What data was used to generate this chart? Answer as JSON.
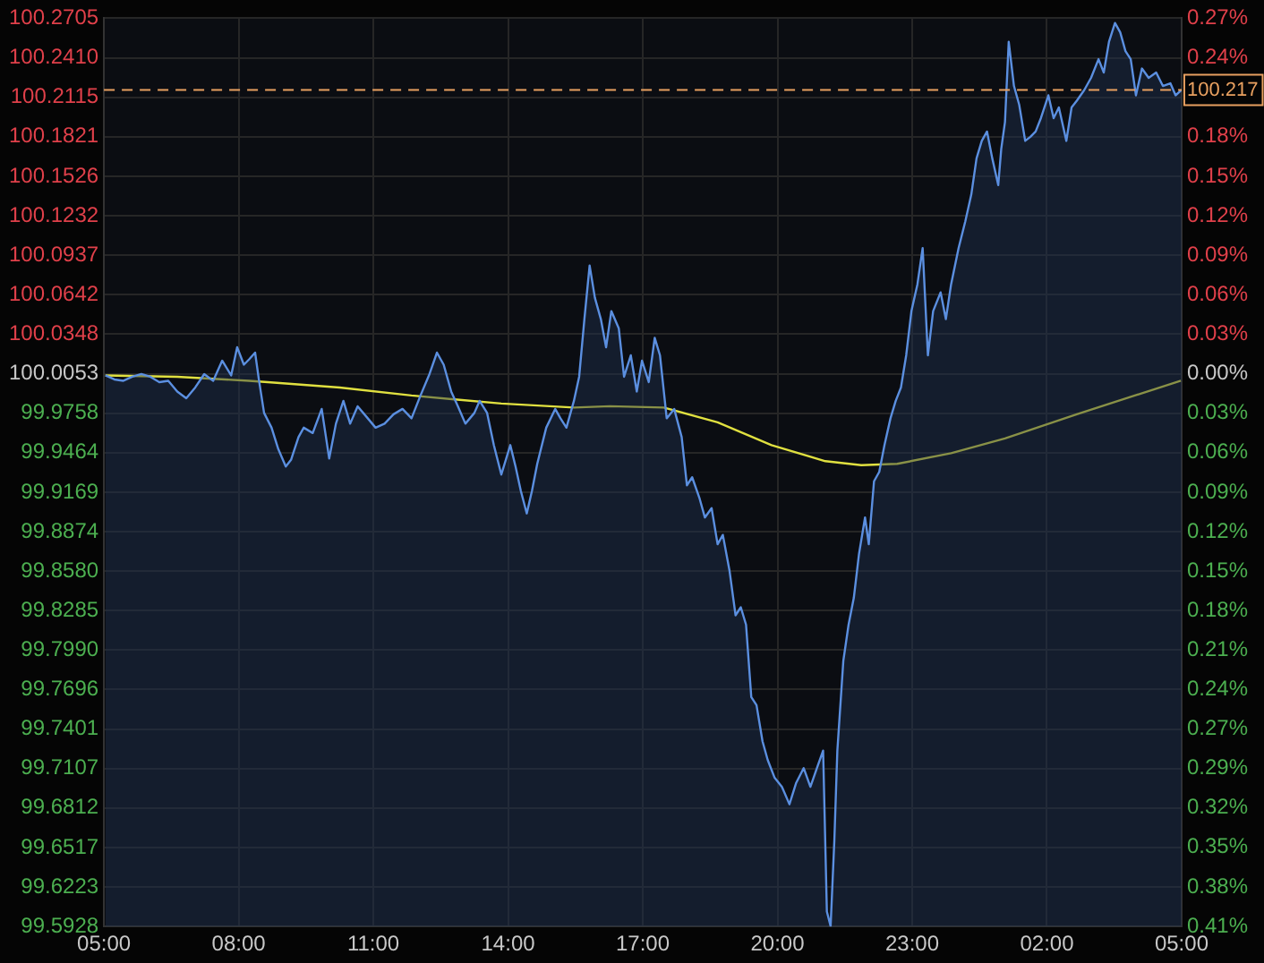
{
  "chart_data": {
    "type": "area",
    "xlim": [
      "2000-01-01T05:00",
      "2000-01-02T05:00"
    ],
    "xticks": [
      {
        "value": "2000-01-01T05:00",
        "label": "05:00"
      },
      {
        "value": "2000-01-01T08:00",
        "label": "08:00"
      },
      {
        "value": "2000-01-01T11:00",
        "label": "11:00"
      },
      {
        "value": "2000-01-01T14:00",
        "label": "14:00"
      },
      {
        "value": "2000-01-01T17:00",
        "label": "17:00"
      },
      {
        "value": "2000-01-01T20:00",
        "label": "20:00"
      },
      {
        "value": "2000-01-01T23:00",
        "label": "23:00"
      },
      {
        "value": "2000-01-02T02:00",
        "label": "02:00"
      },
      {
        "value": "2000-01-02T05:00",
        "label": "05:00"
      }
    ],
    "ylim": [
      99.5928,
      100.2705
    ],
    "yticks": [
      100.2705,
      {
        "value": 100.241,
        "label": "100.2410"
      },
      100.2115,
      100.1821,
      100.1526,
      100.1232,
      100.0937,
      100.0642,
      100.0348,
      100.0053,
      99.9758,
      99.9464,
      99.9169,
      99.8874,
      {
        "value": 99.858,
        "label": "99.8580"
      },
      99.8285,
      {
        "value": 99.799,
        "label": "99.7990"
      },
      99.7696,
      99.7401,
      99.7107,
      99.6812,
      99.6517,
      99.6223,
      99.5928
    ],
    "y2lim": [
      -0.4125,
      0.2652
    ],
    "y2ticks": [
      {
        "value": 0.2652,
        "label": "0.27%"
      },
      {
        "value": 0.2357,
        "label": "0.24%"
      },
      {
        "value": 0.2062,
        "label": null
      },
      {
        "value": 0.1768,
        "label": "0.18%"
      },
      {
        "value": 0.1473,
        "label": "0.15%"
      },
      {
        "value": 0.1179,
        "label": "0.12%"
      },
      {
        "value": 0.0884,
        "label": "0.09%"
      },
      {
        "value": 0.0589,
        "label": "0.06%"
      },
      {
        "value": 0.0295,
        "label": "0.03%"
      },
      {
        "value": 0,
        "label": "0.00%"
      },
      {
        "value": -0.0295,
        "label": "0.03%"
      },
      {
        "value": -0.0589,
        "label": "0.06%"
      },
      {
        "value": -0.0884,
        "label": "0.09%"
      },
      {
        "value": -0.1179,
        "label": "0.12%"
      },
      {
        "value": -0.1473,
        "label": "0.15%"
      },
      {
        "value": -0.1768,
        "label": "0.18%"
      },
      {
        "value": -0.2062,
        "label": "0.21%"
      },
      {
        "value": -0.2357,
        "label": "0.24%"
      },
      {
        "value": -0.2652,
        "label": "0.27%"
      },
      {
        "value": -0.2946,
        "label": "0.29%"
      },
      {
        "value": -0.3241,
        "label": "0.32%"
      },
      {
        "value": -0.3535,
        "label": "0.35%"
      },
      {
        "value": -0.383,
        "label": "0.38%"
      },
      {
        "value": -0.4125,
        "label": "0.41%"
      }
    ],
    "grid": true,
    "legend": false,
    "marker": "none",
    "ref_lines": [
      {
        "axis": "y",
        "value": 100.217,
        "label": "100.217",
        "color": "#e8a060",
        "line_style": "dashed"
      }
    ],
    "series": [
      {
        "type": "area",
        "color": "#5b8fe0",
        "x": [
          "2000-01-01T05:02",
          "2000-01-01T05:14",
          "2000-01-01T05:26",
          "2000-01-01T05:38",
          "2000-01-01T05:50",
          "2000-01-01T06:02",
          "2000-01-01T06:14",
          "2000-01-01T06:26",
          "2000-01-01T06:38",
          "2000-01-01T06:50",
          "2000-01-01T07:02",
          "2000-01-01T07:14",
          "2000-01-01T07:26",
          "2000-01-01T07:38",
          "2000-01-01T07:50",
          "2000-01-01T07:58",
          "2000-01-01T08:07",
          "2000-01-01T08:14",
          "2000-01-01T08:22",
          "2000-01-01T08:27",
          "2000-01-01T08:34",
          "2000-01-01T08:44",
          "2000-01-01T08:53",
          "2000-01-01T09:03",
          "2000-01-01T09:10",
          "2000-01-01T09:20",
          "2000-01-01T09:27",
          "2000-01-01T09:39",
          "2000-01-01T09:51",
          "2000-01-01T10:01",
          "2000-01-01T10:10",
          "2000-01-01T10:20",
          "2000-01-01T10:29",
          "2000-01-01T10:39",
          "2000-01-01T10:51",
          "2000-01-01T11:03",
          "2000-01-01T11:15",
          "2000-01-01T11:27",
          "2000-01-01T11:39",
          "2000-01-01T11:51",
          "2000-01-01T12:03",
          "2000-01-01T12:15",
          "2000-01-01T12:25",
          "2000-01-01T12:34",
          "2000-01-01T12:44",
          "2000-01-01T12:53",
          "2000-01-01T13:03",
          "2000-01-01T13:15",
          "2000-01-01T13:22",
          "2000-01-01T13:32",
          "2000-01-01T13:41",
          "2000-01-01T13:51",
          "2000-01-01T14:03",
          "2000-01-01T14:10",
          "2000-01-01T14:17",
          "2000-01-01T14:25",
          "2000-01-01T14:32",
          "2000-01-01T14:39",
          "2000-01-01T14:51",
          "2000-01-01T15:03",
          "2000-01-01T15:10",
          "2000-01-01T15:18",
          "2000-01-01T15:28",
          "2000-01-01T15:35",
          "2000-01-01T15:42",
          "2000-01-01T15:49",
          "2000-01-01T15:56",
          "2000-01-01T16:04",
          "2000-01-01T16:11",
          "2000-01-01T16:18",
          "2000-01-01T16:28",
          "2000-01-01T16:35",
          "2000-01-01T16:44",
          "2000-01-01T16:52",
          "2000-01-01T16:59",
          "2000-01-01T17:08",
          "2000-01-01T17:16",
          "2000-01-01T17:23",
          "2000-01-01T17:32",
          "2000-01-01T17:42",
          "2000-01-01T17:52",
          "2000-01-01T17:59",
          "2000-01-01T18:06",
          "2000-01-01T18:16",
          "2000-01-01T18:23",
          "2000-01-01T18:32",
          "2000-01-01T18:40",
          "2000-01-01T18:47",
          "2000-01-01T18:56",
          "2000-01-01T19:04",
          "2000-01-01T19:11",
          "2000-01-01T19:18",
          "2000-01-01T19:25",
          "2000-01-01T19:32",
          "2000-01-01T19:40",
          "2000-01-01T19:47",
          "2000-01-01T19:56",
          "2000-01-01T20:06",
          "2000-01-01T20:16",
          "2000-01-01T20:25",
          "2000-01-01T20:35",
          "2000-01-01T20:44",
          "2000-01-01T20:54",
          "2000-01-01T21:01",
          "2000-01-01T21:06",
          "2000-01-01T21:11",
          "2000-01-01T21:16",
          "2000-01-01T21:20",
          "2000-01-01T21:28",
          "2000-01-01T21:35",
          "2000-01-01T21:42",
          "2000-01-01T21:49",
          "2000-01-01T21:57",
          "2000-01-01T22:02",
          "2000-01-01T22:09",
          "2000-01-01T22:16",
          "2000-01-01T22:23",
          "2000-01-01T22:31",
          "2000-01-01T22:38",
          "2000-01-01T22:45",
          "2000-01-01T22:52",
          "2000-01-01T22:59",
          "2000-01-01T23:07",
          "2000-01-01T23:14",
          "2000-01-01T23:21",
          "2000-01-01T23:28",
          "2000-01-01T23:38",
          "2000-01-01T23:45",
          "2000-01-01T23:52",
          "2000-01-02T00:02",
          "2000-01-02T00:11",
          "2000-01-02T00:19",
          "2000-01-02T00:26",
          "2000-01-02T00:33",
          "2000-01-02T00:40",
          "2000-01-02T00:47",
          "2000-01-02T00:55",
          "2000-01-02T00:59",
          "2000-01-02T01:04",
          "2000-01-02T01:09",
          "2000-01-02T01:16",
          "2000-01-02T01:23",
          "2000-01-02T01:31",
          "2000-01-02T01:38",
          "2000-01-02T01:45",
          "2000-01-02T01:52",
          "2000-01-02T02:02",
          "2000-01-02T02:09",
          "2000-01-02T02:16",
          "2000-01-02T02:26",
          "2000-01-02T02:33",
          "2000-01-02T02:40",
          "2000-01-02T02:50",
          "2000-01-02T02:59",
          "2000-01-02T03:09",
          "2000-01-02T03:16",
          "2000-01-02T03:23",
          "2000-01-02T03:31",
          "2000-01-02T03:38",
          "2000-01-02T03:45",
          "2000-01-02T03:52",
          "2000-01-02T03:59",
          "2000-01-02T04:07",
          "2000-01-02T04:16",
          "2000-01-02T04:26",
          "2000-01-02T04:35",
          "2000-01-02T04:45",
          "2000-01-02T04:52",
          "2000-01-02T05:00"
        ],
        "values": [
          100.004,
          100.001,
          100.0,
          100.003,
          100.005,
          100.003,
          99.999,
          100.0,
          99.992,
          99.987,
          99.995,
          100.005,
          100.0,
          100.015,
          100.004,
          100.025,
          100.012,
          100.016,
          100.021,
          100.001,
          99.976,
          99.965,
          99.949,
          99.936,
          99.941,
          99.958,
          99.965,
          99.961,
          99.979,
          99.942,
          99.968,
          99.985,
          99.968,
          99.981,
          99.973,
          99.965,
          99.968,
          99.975,
          99.979,
          99.972,
          99.989,
          100.005,
          100.021,
          100.012,
          99.992,
          99.981,
          99.968,
          99.976,
          99.985,
          99.976,
          99.952,
          99.93,
          99.952,
          99.936,
          99.918,
          99.901,
          99.918,
          99.938,
          99.965,
          99.979,
          99.972,
          99.965,
          99.985,
          100.003,
          100.046,
          100.086,
          100.062,
          100.046,
          100.025,
          100.052,
          100.039,
          100.003,
          100.019,
          99.992,
          100.015,
          99.999,
          100.032,
          100.019,
          99.972,
          99.979,
          99.958,
          99.922,
          99.928,
          99.912,
          99.898,
          99.905,
          99.878,
          99.885,
          99.858,
          99.825,
          99.831,
          99.818,
          99.764,
          99.758,
          99.731,
          99.717,
          99.704,
          99.697,
          99.684,
          99.7,
          99.711,
          99.697,
          99.713,
          99.724,
          99.604,
          99.593,
          99.657,
          99.724,
          99.791,
          99.818,
          99.838,
          99.871,
          99.898,
          99.878,
          99.925,
          99.932,
          99.952,
          99.972,
          99.985,
          99.995,
          100.019,
          100.052,
          100.072,
          100.099,
          100.019,
          100.052,
          100.066,
          100.046,
          100.072,
          100.099,
          100.119,
          100.139,
          100.166,
          100.179,
          100.186,
          100.166,
          100.146,
          100.173,
          100.193,
          100.253,
          100.22,
          100.206,
          100.179,
          100.182,
          100.186,
          100.196,
          100.213,
          100.196,
          100.204,
          100.179,
          100.204,
          100.209,
          100.217,
          100.226,
          100.24,
          100.23,
          100.253,
          100.267,
          100.26,
          100.246,
          100.24,
          100.213,
          100.233,
          100.226,
          100.23,
          100.22,
          100.222,
          100.213,
          100.217
        ]
      },
      {
        "type": "line",
        "color": "#e0e040",
        "x": [
          "2000-01-01T05:02",
          "2000-01-01T06:38",
          "2000-01-01T08:14",
          "2000-01-01T08:39",
          "2000-01-01T10:15",
          "2000-01-01T11:51",
          "2000-01-01T13:51",
          "2000-01-01T15:28",
          "2000-01-01T16:16",
          "2000-01-01T17:28",
          "2000-01-01T18:40",
          "2000-01-01T19:52",
          "2000-01-01T21:04",
          "2000-01-01T21:52",
          "2000-01-01T22:40",
          "2000-01-01T23:52",
          "2000-01-02T01:04",
          "2000-01-02T02:40",
          "2000-01-02T03:52",
          "2000-01-02T04:59"
        ],
        "values": [
          100.004,
          100.003,
          100.0,
          99.999,
          99.995,
          99.989,
          99.983,
          99.98,
          99.981,
          99.98,
          99.969,
          99.952,
          99.94,
          99.937,
          99.938,
          99.946,
          99.957,
          99.975,
          99.988,
          100.0
        ]
      }
    ]
  }
}
